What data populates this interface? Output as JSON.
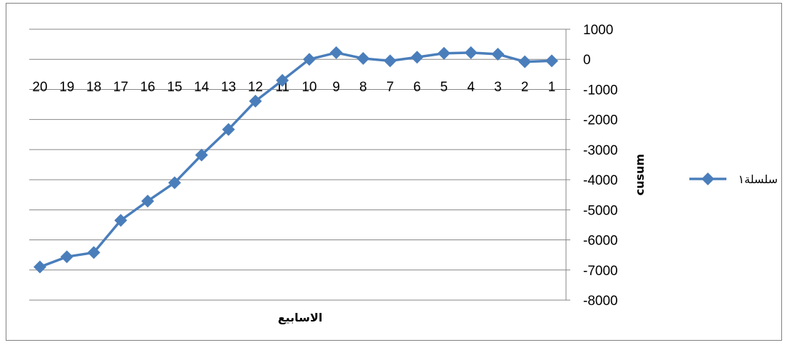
{
  "chart_data": {
    "type": "line",
    "x": [
      "1",
      "2",
      "3",
      "4",
      "5",
      "6",
      "7",
      "8",
      "9",
      "10",
      "11",
      "12",
      "13",
      "14",
      "15",
      "16",
      "17",
      "18",
      "19",
      "20"
    ],
    "series": [
      {
        "name": "سلسلة١",
        "values": [
          -50,
          -80,
          170,
          220,
          200,
          70,
          -50,
          30,
          220,
          0,
          -700,
          -1390,
          -2330,
          -3180,
          -4100,
          -4710,
          -5350,
          -6420,
          -6560,
          -6900
        ],
        "color": "#4a7ebb"
      }
    ],
    "xlabel": "الاسابيع",
    "ylabel": "cusum",
    "ylim": [
      -8000,
      1000
    ],
    "ytick_step": 1000,
    "x_axis_direction": "right-to-left",
    "y_axis_position": "right",
    "grid": true,
    "legend_position": "right",
    "gridline_color": "#868686",
    "marker": "diamond"
  }
}
